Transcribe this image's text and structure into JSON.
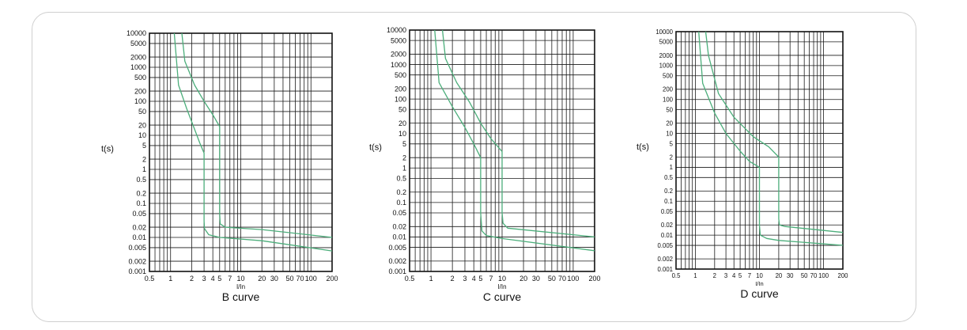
{
  "chart_data": [
    {
      "type": "line",
      "title": "B curve",
      "xlabel": "I/In",
      "ylabel": "t(s)",
      "x_scale": "log",
      "y_scale": "log",
      "xlim": [
        0.5,
        200
      ],
      "ylim": [
        0.001,
        10000
      ],
      "x_ticks": [
        "0.5",
        "1",
        "2",
        "3",
        "4",
        "5",
        "7",
        "10",
        "20",
        "30",
        "50",
        "70",
        "100",
        "200"
      ],
      "y_ticks": [
        "10000",
        "5000",
        "2000",
        "1000",
        "500",
        "200",
        "100",
        "50",
        "20",
        "10",
        "5",
        "2",
        "1",
        "0.5",
        "0.2",
        "0.1",
        "0.05",
        "0.02",
        "0.01",
        "0.005",
        "0.002",
        "0.001"
      ],
      "grid": true,
      "series": [
        {
          "values": [
            [
              1.13,
              10000
            ],
            [
              1.3,
              300
            ],
            [
              1.7,
              60
            ],
            [
              2.2,
              15
            ],
            [
              2.6,
              6
            ],
            [
              3,
              3
            ],
            [
              3,
              0.03
            ],
            [
              3.05,
              0.018
            ],
            [
              3.5,
              0.012
            ],
            [
              5,
              0.01
            ],
            [
              20,
              0.008
            ],
            [
              200,
              0.004
            ]
          ]
        },
        {
          "values": [
            [
              1.45,
              10000
            ],
            [
              1.6,
              1500
            ],
            [
              2.2,
              300
            ],
            [
              3,
              100
            ],
            [
              4,
              40
            ],
            [
              5,
              18
            ],
            [
              5,
              0.05
            ],
            [
              5.1,
              0.025
            ],
            [
              6,
              0.02
            ],
            [
              20,
              0.017
            ],
            [
              200,
              0.01
            ]
          ]
        }
      ]
    },
    {
      "type": "line",
      "title": "C curve",
      "xlabel": "I/In",
      "ylabel": "t(s)",
      "x_scale": "log",
      "y_scale": "log",
      "xlim": [
        0.5,
        200
      ],
      "ylim": [
        0.001,
        10000
      ],
      "x_ticks": [
        "0.5",
        "1",
        "2",
        "3",
        "4",
        "5",
        "7",
        "10",
        "20",
        "30",
        "50",
        "70",
        "100",
        "200"
      ],
      "y_ticks": [
        "10000",
        "5000",
        "2000",
        "1000",
        "500",
        "200",
        "100",
        "50",
        "20",
        "10",
        "5",
        "2",
        "1",
        "0.5",
        "0.2",
        "0.1",
        "0.05",
        "0.02",
        "0.01",
        "0.005",
        "0.002",
        "0.001"
      ],
      "grid": true,
      "series": [
        {
          "values": [
            [
              1.13,
              10000
            ],
            [
              1.3,
              300
            ],
            [
              2,
              60
            ],
            [
              3,
              15
            ],
            [
              4,
              5
            ],
            [
              5,
              2
            ],
            [
              5,
              0.05
            ],
            [
              5.2,
              0.015
            ],
            [
              6,
              0.011
            ],
            [
              10,
              0.009
            ],
            [
              200,
              0.004
            ]
          ]
        },
        {
          "values": [
            [
              1.45,
              10000
            ],
            [
              1.6,
              1500
            ],
            [
              2.3,
              300
            ],
            [
              3.5,
              80
            ],
            [
              5,
              20
            ],
            [
              7,
              7
            ],
            [
              10,
              3
            ],
            [
              10,
              0.05
            ],
            [
              10.3,
              0.025
            ],
            [
              12,
              0.018
            ],
            [
              200,
              0.01
            ]
          ]
        }
      ]
    },
    {
      "type": "line",
      "title": "D curve",
      "xlabel": "I/In",
      "ylabel": "t(s)",
      "x_scale": "log",
      "y_scale": "log",
      "xlim": [
        0.5,
        200
      ],
      "ylim": [
        0.001,
        10000
      ],
      "x_ticks": [
        "0.5",
        "1",
        "2",
        "3",
        "4",
        "5",
        "7",
        "10",
        "20",
        "30",
        "50",
        "70",
        "100",
        "200"
      ],
      "y_ticks": [
        "10000",
        "5000",
        "2000",
        "1000",
        "500",
        "200",
        "100",
        "50",
        "20",
        "10",
        "5",
        "2",
        "1",
        "0.5",
        "0.2",
        "0.1",
        "0.05",
        "0.02",
        "0.01",
        "0.005",
        "0.002",
        "0.001"
      ],
      "grid": true,
      "series": [
        {
          "values": [
            [
              1.13,
              10000
            ],
            [
              1.3,
              300
            ],
            [
              2,
              40
            ],
            [
              3,
              10
            ],
            [
              5,
              3
            ],
            [
              7,
              1.5
            ],
            [
              10,
              1
            ],
            [
              10,
              0.02
            ],
            [
              10.3,
              0.01
            ],
            [
              13,
              0.008
            ],
            [
              20,
              0.007
            ],
            [
              200,
              0.005
            ]
          ]
        },
        {
          "values": [
            [
              1.45,
              10000
            ],
            [
              1.6,
              2000
            ],
            [
              2.3,
              150
            ],
            [
              4,
              30
            ],
            [
              8,
              8
            ],
            [
              14,
              4
            ],
            [
              20,
              2
            ],
            [
              20,
              0.03
            ],
            [
              20.5,
              0.02
            ],
            [
              25,
              0.018
            ],
            [
              200,
              0.012
            ]
          ]
        }
      ]
    }
  ]
}
